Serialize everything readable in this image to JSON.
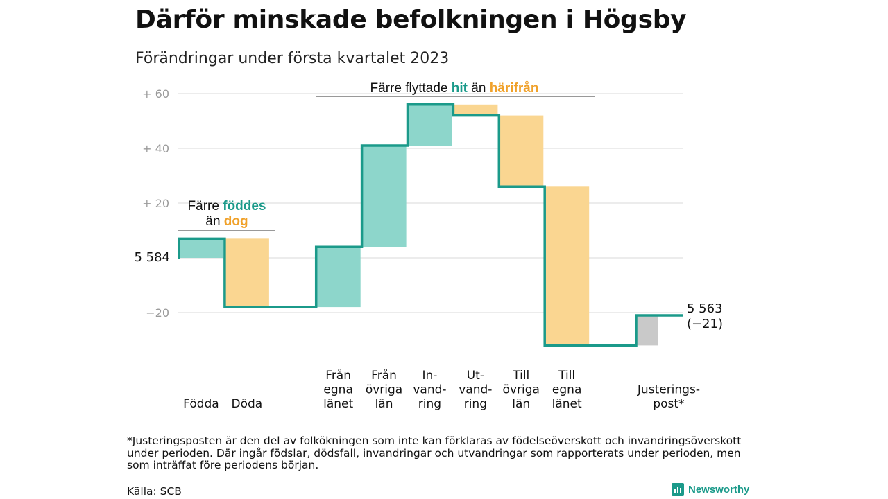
{
  "header": {
    "title": "Därför minskade befolkningen i Högsby",
    "subtitle": "Förändringar under första kvartalet 2023"
  },
  "chart_data": {
    "type": "waterfall",
    "base_value": 5584,
    "base_label": "5 584",
    "end_label": "5 563",
    "end_change_label": "(−21)",
    "ylim": [
      -32,
      62
    ],
    "yticks": [
      {
        "value": 60,
        "label": "+ 60"
      },
      {
        "value": 40,
        "label": "+ 40"
      },
      {
        "value": 20,
        "label": "+ 20"
      },
      {
        "value": 0,
        "label": ""
      },
      {
        "value": -20,
        "label": "−20"
      }
    ],
    "steps": [
      {
        "label": [
          "Födda"
        ],
        "value": 7,
        "kind": "in"
      },
      {
        "label": [
          "Döda"
        ],
        "value": -25,
        "kind": "out"
      },
      {
        "label": [],
        "value": 0,
        "kind": "gap"
      },
      {
        "label": [
          "Från",
          "egna",
          "länet"
        ],
        "value": 22,
        "kind": "in"
      },
      {
        "label": [
          "Från",
          "övriga",
          "län"
        ],
        "value": 37,
        "kind": "in"
      },
      {
        "label": [
          "In-",
          "vand-",
          "ring"
        ],
        "value": 15,
        "kind": "in"
      },
      {
        "label": [
          "Ut-",
          "vand-",
          "ring"
        ],
        "value": -4,
        "kind": "out"
      },
      {
        "label": [
          "Till",
          "övriga",
          "län"
        ],
        "value": -26,
        "kind": "out"
      },
      {
        "label": [
          "Till",
          "egna",
          "länet"
        ],
        "value": -58,
        "kind": "out"
      },
      {
        "label": [],
        "value": 0,
        "kind": "gap"
      },
      {
        "label": [
          "Justerings-",
          "post*"
        ],
        "value": 11,
        "kind": "adj"
      }
    ],
    "annotations": [
      {
        "id": "births",
        "lines": [
          [
            {
              "t": "Färre ",
              "c": "text"
            },
            {
              "t": "föddes",
              "c": "in"
            }
          ],
          [
            {
              "t": "än ",
              "c": "text"
            },
            {
              "t": "dog",
              "c": "out"
            }
          ]
        ]
      },
      {
        "id": "moves",
        "lines": [
          [
            {
              "t": "Färre flyttade ",
              "c": "text"
            },
            {
              "t": "hit",
              "c": "in"
            },
            {
              "t": " än ",
              "c": "text"
            },
            {
              "t": "härifrån",
              "c": "out"
            }
          ]
        ]
      }
    ],
    "colors": {
      "in": "#8dd6cb",
      "in_text": "#1b9a8a",
      "out": "#fad691",
      "out_text": "#f0a12a",
      "adj": "#c9c9c9",
      "line": "#1b9a8a",
      "grid": "#e0e0e0",
      "axis_text": "#9a9a9a",
      "text": "#111111"
    }
  },
  "footnote": "*Justeringsposten är den del av folkökningen som inte kan förklaras av födelseöverskott och invandringsöverskott under perioden. Där ingår födslar, dödsfall, invandringar och utvandringar som rapporterats under perioden, men som inträffat före periodens början.",
  "source": "Källa: SCB",
  "brand": {
    "name": "Newsworthy"
  }
}
